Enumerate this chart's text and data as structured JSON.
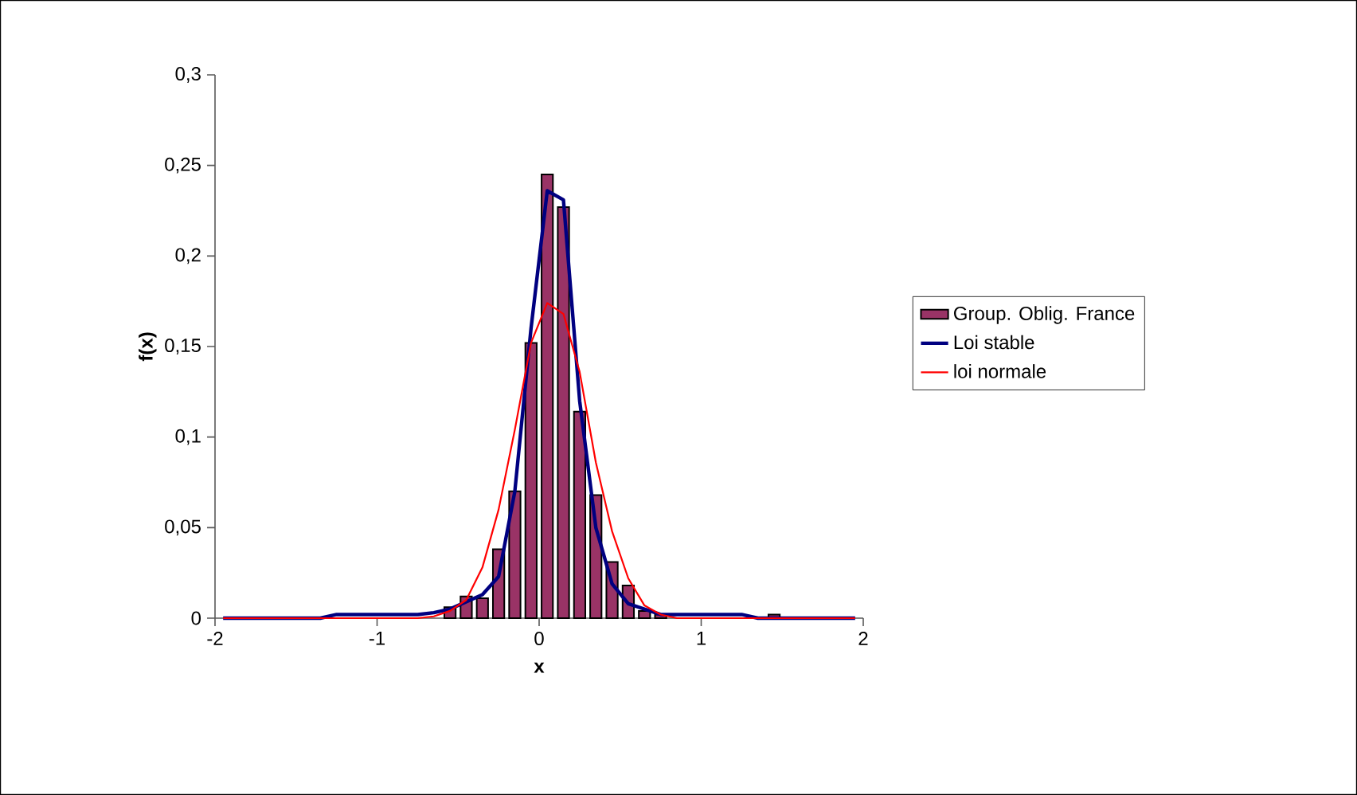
{
  "chart_data": {
    "type": "bar",
    "xlabel": "x",
    "ylabel": "f(x)",
    "x": [
      -1.95,
      -1.85,
      -1.75,
      -1.65,
      -1.55,
      -1.45,
      -1.35,
      -1.25,
      -1.15,
      -1.05,
      -0.95,
      -0.85,
      -0.75,
      -0.65,
      -0.55,
      -0.45,
      -0.35,
      -0.25,
      -0.15,
      -0.05,
      0.05,
      0.15,
      0.25,
      0.35,
      0.45,
      0.55,
      0.65,
      0.75,
      0.85,
      0.95,
      1.05,
      1.15,
      1.25,
      1.35,
      1.45,
      1.55,
      1.65,
      1.75,
      1.85,
      1.95
    ],
    "series": [
      {
        "name": "Group. Oblig. France",
        "color": "#993366",
        "values": [
          null,
          null,
          null,
          null,
          null,
          null,
          null,
          null,
          null,
          null,
          null,
          null,
          null,
          null,
          0.006,
          0.012,
          0.011,
          0.038,
          0.07,
          0.152,
          0.245,
          0.227,
          0.114,
          0.068,
          0.031,
          0.018,
          0.004,
          0.002,
          null,
          null,
          null,
          null,
          null,
          null,
          0.002,
          null,
          null,
          null,
          null,
          null
        ]
      },
      {
        "name": "Loi stable",
        "type": "line",
        "color": "#000080",
        "values": [
          0,
          0,
          0,
          0,
          0,
          0,
          0,
          0.002,
          0.002,
          0.002,
          0.002,
          0.002,
          0.002,
          0.003,
          0.005,
          0.009,
          0.013,
          0.023,
          0.07,
          0.16,
          0.236,
          0.231,
          0.12,
          0.05,
          0.019,
          0.008,
          0.005,
          0.002,
          0.002,
          0.002,
          0.002,
          0.002,
          0.002,
          0,
          0,
          0,
          0,
          0,
          0,
          0
        ]
      },
      {
        "name": "loi normale",
        "type": "line",
        "color": "#ff0000",
        "values": [
          0,
          0,
          0,
          0,
          0,
          0,
          0,
          0,
          0,
          0,
          0,
          0,
          0,
          0.001,
          0.004,
          0.01,
          0.028,
          0.06,
          0.104,
          0.152,
          0.174,
          0.168,
          0.136,
          0.086,
          0.048,
          0.022,
          0.007,
          0.002,
          0,
          0,
          0,
          0,
          0,
          0,
          0,
          0,
          0,
          0,
          0,
          0
        ]
      }
    ],
    "xlim": [
      -2,
      2
    ],
    "ylim": [
      0,
      0.3
    ],
    "xticks": [
      -2,
      -1,
      0,
      1,
      2
    ],
    "yticks": [
      0,
      {
        "value": 0.05,
        "label": "0,05"
      },
      {
        "value": 0.1,
        "label": "0,1"
      },
      {
        "value": 0.15,
        "label": "0,15"
      },
      {
        "value": 0.2,
        "label": "0,2"
      },
      {
        "value": 0.25,
        "label": "0,25"
      },
      {
        "value": 0.3,
        "label": "0,3"
      }
    ],
    "grid": false,
    "legend": "right",
    "marker": "none"
  }
}
